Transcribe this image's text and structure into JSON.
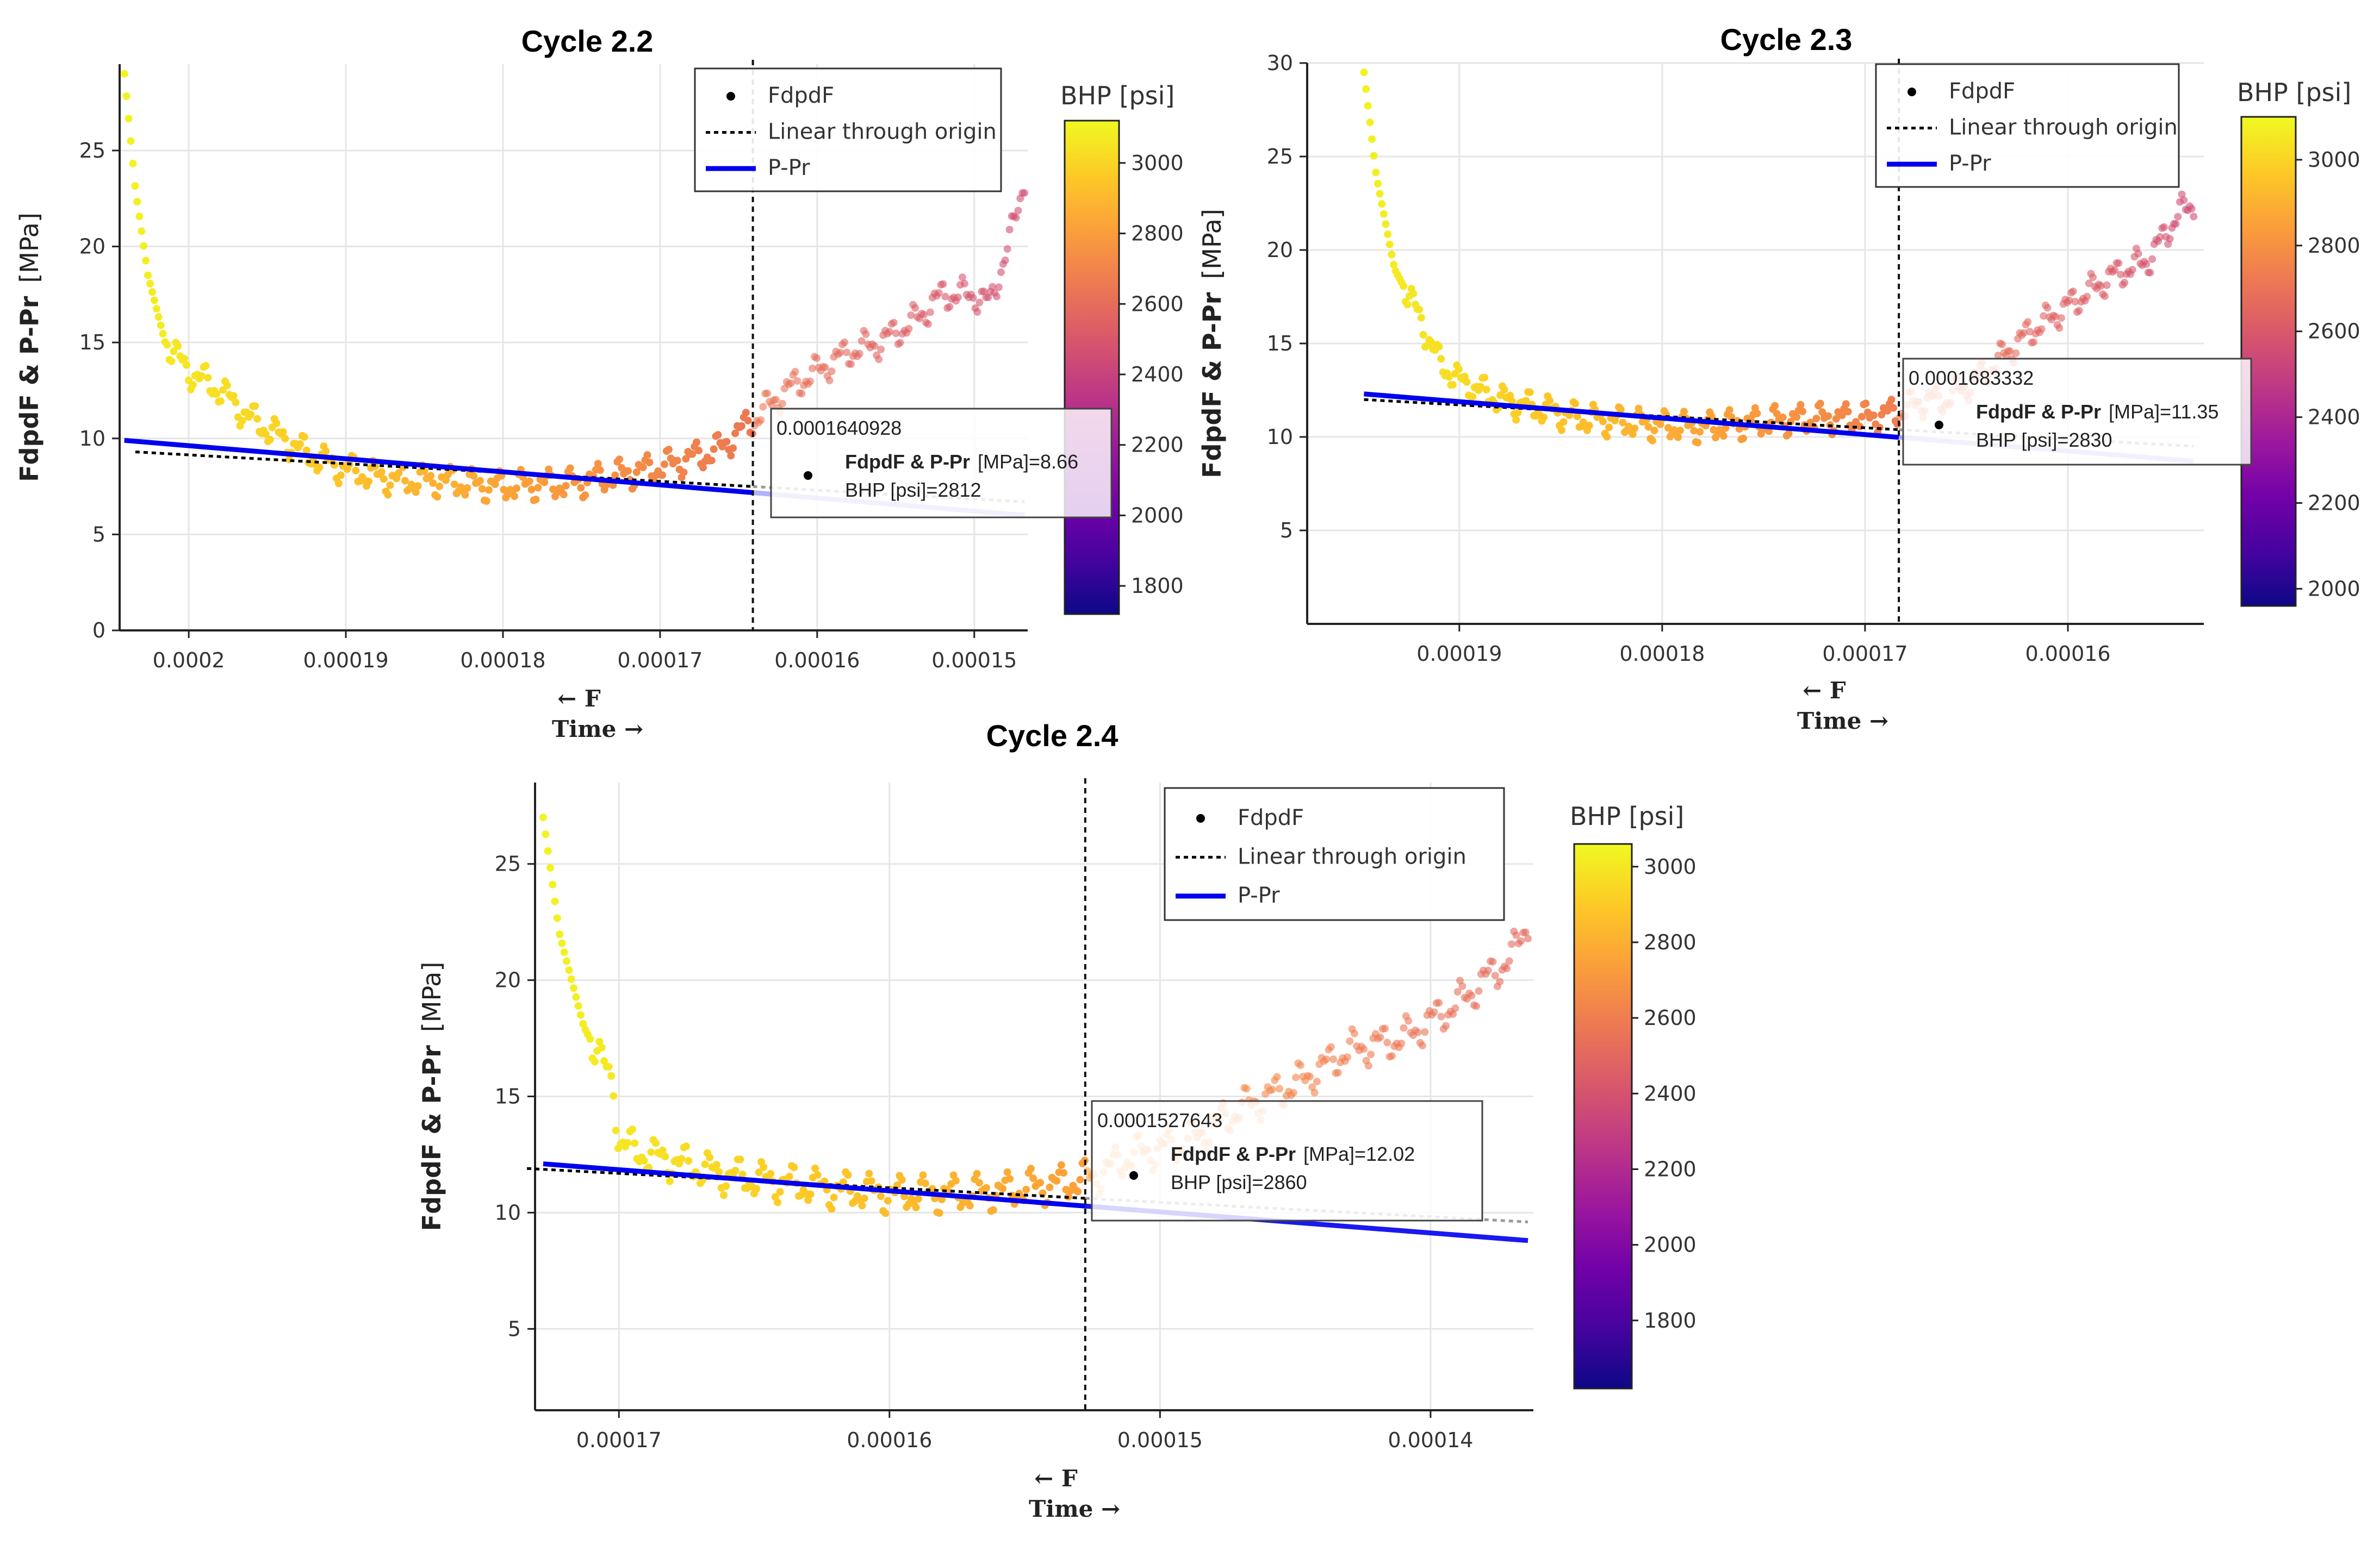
{
  "colors": {
    "scale": [
      "#0d0887",
      "#46039f",
      "#7201a8",
      "#9c179e",
      "#bd3786",
      "#d8576b",
      "#ed7953",
      "#fb9f3a",
      "#fdca26",
      "#f0f921"
    ],
    "ppr": "#0000ee",
    "linear": "#000000",
    "axis": "#222222",
    "grid": "#e6e6e6"
  },
  "chart_data": [
    {
      "id": "c22",
      "type": "scatter",
      "title": "Cycle 2.2",
      "ylabel_bold": "FdpdF & P-Pr",
      "ylabel_unit": "[MPa]",
      "xlabel_line1": "← F",
      "xlabel_line2": "Time →",
      "x_reversed": true,
      "xlim": [
        0.0002044,
        0.0001466
      ],
      "ylim": [
        0,
        29.5
      ],
      "xticks": [
        0.0002,
        0.00019,
        0.00018,
        0.00017,
        0.00016,
        0.00015
      ],
      "xtick_labels": [
        "0.0002",
        "0.00019",
        "0.00018",
        "0.00017",
        "0.00016",
        "0.00015"
      ],
      "yticks": [
        0,
        5,
        10,
        15,
        20,
        25
      ],
      "ytick_labels": [
        "0",
        "5",
        "10",
        "15",
        "20",
        "25"
      ],
      "legend": {
        "fdpdf": "FdpdF",
        "linear": "Linear through origin",
        "ppr": "P-Pr"
      },
      "colorbar": {
        "title": "BHP [psi]",
        "min": 1720,
        "max": 3120,
        "ticks": [
          1800,
          2000,
          2200,
          2400,
          2600,
          2800,
          3000
        ],
        "labels": [
          "1800",
          "2000",
          "2200",
          "2400",
          "2600",
          "2800",
          "3000"
        ]
      },
      "cutoff_x": 0.0001640928,
      "fdpdf_anchors": [
        [
          0.0002041,
          29
        ],
        [
          0.0002034,
          23
        ],
        [
          0.0002026,
          18.5
        ],
        [
          0.0002015,
          15
        ],
        [
          0.0002,
          13.5
        ],
        [
          0.000198,
          12.5
        ],
        [
          0.000196,
          11
        ],
        [
          0.000194,
          10
        ],
        [
          0.000192,
          9
        ],
        [
          0.00019,
          8.4
        ],
        [
          0.000188,
          8
        ],
        [
          0.000186,
          7.8
        ],
        [
          0.000184,
          7.8
        ],
        [
          0.000182,
          7.6
        ],
        [
          0.00018,
          7.5
        ],
        [
          0.000178,
          7.6
        ],
        [
          0.000176,
          7.6
        ],
        [
          0.000174,
          7.9
        ],
        [
          0.000172,
          8.2
        ],
        [
          0.00017,
          8.5
        ],
        [
          0.000168,
          9
        ],
        [
          0.0001665,
          9.3
        ],
        [
          0.000164,
          11
        ],
        [
          0.000162,
          12.5
        ],
        [
          0.00016,
          13.5
        ],
        [
          0.000158,
          14.5
        ],
        [
          0.000156,
          15
        ],
        [
          0.000154,
          16
        ],
        [
          0.000152,
          17.5
        ],
        [
          0.00015,
          17.5
        ],
        [
          0.000149,
          17
        ],
        [
          0.0001475,
          21
        ],
        [
          0.0001468,
          23.5
        ]
      ],
      "ppr_line": [
        [
          0.0002041,
          9.9
        ],
        [
          0.0001468,
          6.0
        ]
      ],
      "linear_line": [
        [
          0.0002034,
          9.3
        ],
        [
          0.0001468,
          6.7
        ]
      ],
      "bhp_range": [
        3100,
        2450
      ],
      "tooltip": {
        "x": "0.0001640928",
        "series": "FdpdF & P-Pr",
        "unit": "[MPa]",
        "value": "=8.66",
        "bhp": "BHP [psi]=2812"
      }
    },
    {
      "id": "c23",
      "type": "scatter",
      "title": "Cycle 2.3",
      "ylabel_bold": "FdpdF & P-Pr",
      "ylabel_unit": "[MPa]",
      "xlabel_line1": "← F",
      "xlabel_line2": "Time →",
      "x_reversed": true,
      "xlim": [
        0.0001975,
        0.0001533
      ],
      "ylim": [
        0,
        30
      ],
      "xticks": [
        0.00019,
        0.00018,
        0.00017,
        0.00016
      ],
      "xtick_labels": [
        "0.00019",
        "0.00018",
        "0.00017",
        "0.00016"
      ],
      "yticks": [
        5,
        10,
        15,
        20,
        25,
        30
      ],
      "ytick_labels": [
        "5",
        "10",
        "15",
        "20",
        "25",
        "30"
      ],
      "legend": {
        "fdpdf": "FdpdF",
        "linear": "Linear through origin",
        "ppr": "P-Pr"
      },
      "colorbar": {
        "title": "BHP [psi]",
        "min": 1960,
        "max": 3100,
        "ticks": [
          2000,
          2200,
          2400,
          2600,
          2800,
          3000
        ],
        "labels": [
          "2000",
          "2200",
          "2400",
          "2600",
          "2800",
          "3000"
        ]
      },
      "cutoff_x": 0.0001683332,
      "fdpdf_anchors": [
        [
          0.0001947,
          29.5
        ],
        [
          0.0001941,
          24
        ],
        [
          0.0001932,
          19
        ],
        [
          0.000192,
          16.5
        ],
        [
          0.000191,
          14
        ],
        [
          0.00019,
          13
        ],
        [
          0.000188,
          12
        ],
        [
          0.000186,
          11.5
        ],
        [
          0.000184,
          11
        ],
        [
          0.000182,
          10.8
        ],
        [
          0.00018,
          10.6
        ],
        [
          0.000178,
          10.5
        ],
        [
          0.000176,
          10.7
        ],
        [
          0.000174,
          10.9
        ],
        [
          0.000172,
          11
        ],
        [
          0.00017,
          11
        ],
        [
          0.0001685,
          11.3
        ],
        [
          0.000167,
          12
        ],
        [
          0.000166,
          12
        ],
        [
          0.000164,
          13.5
        ],
        [
          0.000162,
          15.5
        ],
        [
          0.00016,
          17
        ],
        [
          0.000158,
          18.5
        ],
        [
          0.000156,
          19.5
        ],
        [
          0.0001545,
          22
        ],
        [
          0.0001538,
          22.5
        ]
      ],
      "ppr_line": [
        [
          0.0001947,
          12.3
        ],
        [
          0.0001538,
          8.7
        ]
      ],
      "linear_line": [
        [
          0.0001947,
          12.0
        ],
        [
          0.0001538,
          9.5
        ]
      ],
      "bhp_range": [
        3080,
        2550
      ],
      "tooltip": {
        "x": "0.0001683332",
        "series": "FdpdF & P-Pr",
        "unit": "[MPa]",
        "value": "=11.35",
        "bhp": "BHP [psi]=2830"
      }
    },
    {
      "id": "c24",
      "type": "scatter",
      "title": "Cycle 2.4",
      "ylabel_bold": "FdpdF & P-Pr",
      "ylabel_unit": "[MPa]",
      "xlabel_line1": "← F",
      "xlabel_line2": "Time →",
      "x_reversed": true,
      "xlim": [
        0.0001731,
        0.0001362
      ],
      "ylim": [
        1.5,
        28.5
      ],
      "xticks": [
        0.00017,
        0.00016,
        0.00015,
        0.00014
      ],
      "xtick_labels": [
        "0.00017",
        "0.00016",
        "0.00015",
        "0.00014"
      ],
      "yticks": [
        5,
        10,
        15,
        20,
        25
      ],
      "ytick_labels": [
        "5",
        "10",
        "15",
        "20",
        "25"
      ],
      "legend": {
        "fdpdf": "FdpdF",
        "linear": "Linear through origin",
        "ppr": "P-Pr"
      },
      "colorbar": {
        "title": "BHP [psi]",
        "min": 1620,
        "max": 3060,
        "ticks": [
          1800,
          2000,
          2200,
          2400,
          2600,
          2800,
          3000
        ],
        "labels": [
          "1800",
          "2000",
          "2200",
          "2400",
          "2600",
          "2800",
          "3000"
        ]
      },
      "cutoff_x": 0.0001527643,
      "fdpdf_anchors": [
        [
          0.0001728,
          27
        ],
        [
          0.0001722,
          22
        ],
        [
          0.0001713,
          18
        ],
        [
          0.0001702,
          15.5
        ],
        [
          0.00017,
          13
        ],
        [
          0.000169,
          12.5
        ],
        [
          0.000168,
          12.2
        ],
        [
          0.000166,
          11.6
        ],
        [
          0.000164,
          11.3
        ],
        [
          0.000162,
          11
        ],
        [
          0.00016,
          10.8
        ],
        [
          0.000158,
          10.8
        ],
        [
          0.000156,
          10.9
        ],
        [
          0.000154,
          11.2
        ],
        [
          0.0001525,
          11.5
        ],
        [
          0.000151,
          12.5
        ],
        [
          0.000149,
          13
        ],
        [
          0.000147,
          14.5
        ],
        [
          0.000145,
          15.5
        ],
        [
          0.000143,
          17
        ],
        [
          0.000141,
          17.5
        ],
        [
          0.000139,
          19
        ],
        [
          0.000137,
          21
        ],
        [
          0.0001364,
          22.5
        ]
      ],
      "ppr_line": [
        [
          0.0001728,
          12.1
        ],
        [
          0.0001364,
          8.8
        ]
      ],
      "linear_line": [
        [
          0.0001734,
          11.9
        ],
        [
          0.0001364,
          9.6
        ]
      ],
      "bhp_range": [
        3040,
        2500
      ],
      "tooltip": {
        "x": "0.0001527643",
        "series": "FdpdF & P-Pr",
        "unit": "[MPa]",
        "value": "=12.02",
        "bhp": "BHP [psi]=2860"
      }
    }
  ]
}
